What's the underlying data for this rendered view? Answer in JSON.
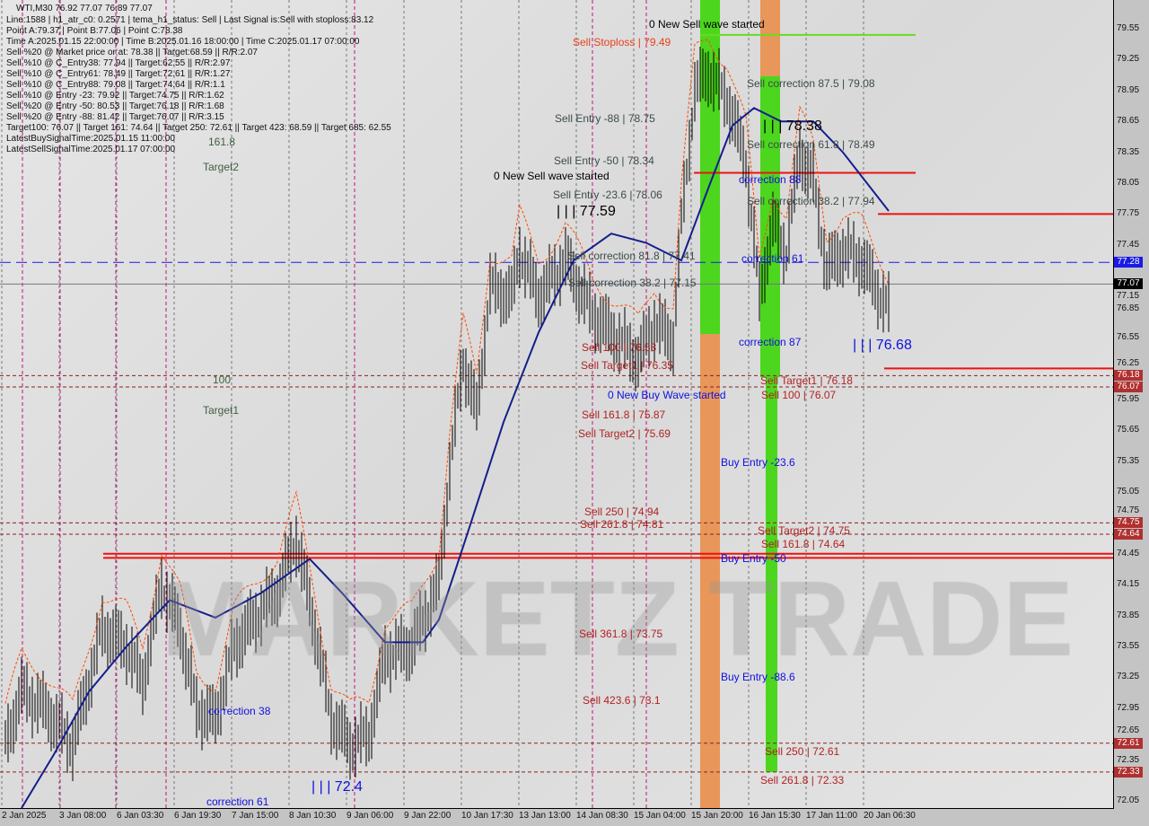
{
  "header": {
    "title": "WTI,M30  76.92 77.07 76.89 77.07",
    "info_lines": [
      "Line:1588 | h1_atr_c0: 0.2571 | tema_h1_status: Sell | Last Signal is:Sell with stoploss:83.12",
      "Point A:79.37 | Point B:77.06 | Point C:78.38",
      "Time A:2025.01.15 22:00:00 | Time B:2025.01.16 18:00:00 | Time C:2025.01.17 07:00:00",
      "Sell %20 @ Market price or at: 78.38 || Target:68.59 || R/R:2.07",
      "Sell %10 @ C_Entry38: 77.94 || Target:62.55 || R/R:2.97",
      "Sell %10 @ C_Entry61: 78.49 || Target:72.61 || R/R:1.27",
      "Sell %10 @ C_Entry88: 79.08 || Target:74.64 || R/R:1.1",
      "Sell %10 @ Entry -23: 79.92 || Target:74.75 || R/R:1.62",
      "Sell %20 @ Entry -50: 80.53 || Target:76.18 || R/R:1.68",
      "Sell %20 @ Entry -88: 81.42 || Target:76.07 || R/R:3.15",
      "Target100: 76.07 || Target 161: 74.64 || Target 250: 72.61 || Target 423: 68.59 || Target 685: 62.55",
      "LatestBuySignalTime:2025.01.15 11:00:00",
      "LatestSellSignalTime:2025.01.17 07:00:00"
    ]
  },
  "watermark": "MARKETZ TRADE",
  "chart_data": {
    "type": "bar",
    "symbol": "WTI",
    "timeframe": "M30",
    "ylim": [
      72.05,
      79.55
    ],
    "y_ticks": [
      "79.55",
      "79.25",
      "78.95",
      "78.65",
      "78.35",
      "78.05",
      "77.75",
      "77.45",
      "77.15",
      "76.85",
      "76.55",
      "76.25",
      "75.95",
      "75.65",
      "75.35",
      "75.05",
      "74.75",
      "74.45",
      "74.15",
      "73.85",
      "73.55",
      "73.25",
      "72.95",
      "72.65",
      "72.35",
      "72.05"
    ],
    "x_ticks": [
      "2 Jan 2025",
      "3 Jan 08:00",
      "6 Jan 03:30",
      "6 Jan 19:30",
      "7 Jan 15:00",
      "8 Jan 10:30",
      "9 Jan 06:00",
      "9 Jan 22:00",
      "10 Jan 17:30",
      "13 Jan 13:00",
      "14 Jan 08:30",
      "15 Jan 04:00",
      "15 Jan 20:00",
      "16 Jan 15:30",
      "17 Jan 11:00",
      "20 Jan 06:30"
    ],
    "price_path_bar_close": [
      [
        2,
        72.59
      ],
      [
        8,
        73.11
      ],
      [
        17,
        72.94
      ],
      [
        27,
        72.59
      ],
      [
        33,
        73.2
      ],
      [
        38,
        73.72
      ],
      [
        47,
        73.55
      ],
      [
        53,
        73.2
      ],
      [
        60,
        74.16
      ],
      [
        67,
        73.72
      ],
      [
        73,
        72.94
      ],
      [
        80,
        72.85
      ],
      [
        87,
        73.55
      ],
      [
        97,
        73.9
      ],
      [
        103,
        74.07
      ],
      [
        110,
        74.6
      ],
      [
        117,
        73.72
      ],
      [
        123,
        72.85
      ],
      [
        130,
        72.59
      ],
      [
        137,
        72.68
      ],
      [
        143,
        73.46
      ],
      [
        153,
        73.55
      ],
      [
        163,
        74.16
      ],
      [
        167,
        75.29
      ],
      [
        172,
        76.34
      ],
      [
        177,
        75.82
      ],
      [
        182,
        77.04
      ],
      [
        190,
        76.95
      ],
      [
        193,
        77.39
      ],
      [
        200,
        76.95
      ],
      [
        210,
        77.3
      ],
      [
        220,
        76.78
      ],
      [
        230,
        76.52
      ],
      [
        237,
        76.34
      ],
      [
        243,
        76.69
      ],
      [
        250,
        76.52
      ],
      [
        253,
        77.65
      ],
      [
        258,
        78.96
      ],
      [
        263,
        79.13
      ],
      [
        270,
        78.87
      ],
      [
        277,
        78.26
      ],
      [
        282,
        76.95
      ],
      [
        287,
        77.65
      ],
      [
        292,
        77.39
      ],
      [
        297,
        78.35
      ],
      [
        302,
        78.08
      ],
      [
        307,
        77.21
      ],
      [
        313,
        77.39
      ],
      [
        320,
        77.3
      ],
      [
        325,
        77.04
      ],
      [
        330,
        76.82
      ]
    ],
    "moving_average": [
      [
        8,
        71.98
      ],
      [
        20,
        72.5
      ],
      [
        33,
        73.11
      ],
      [
        47,
        73.55
      ],
      [
        63,
        74.0
      ],
      [
        80,
        73.83
      ],
      [
        97,
        74.07
      ],
      [
        115,
        74.4
      ],
      [
        127,
        74.07
      ],
      [
        143,
        73.59
      ],
      [
        157,
        73.59
      ],
      [
        163,
        73.81
      ],
      [
        173,
        74.6
      ],
      [
        187,
        75.73
      ],
      [
        200,
        76.6
      ],
      [
        213,
        77.3
      ],
      [
        227,
        77.56
      ],
      [
        240,
        77.47
      ],
      [
        253,
        77.3
      ],
      [
        263,
        78.0
      ],
      [
        272,
        78.61
      ],
      [
        280,
        78.78
      ],
      [
        290,
        78.65
      ],
      [
        302,
        78.65
      ],
      [
        313,
        78.35
      ],
      [
        330,
        77.78
      ]
    ],
    "price_badges": [
      {
        "value": "77.28",
        "color": "#1a1ae6"
      },
      {
        "value": "77.07",
        "color": "#000000"
      },
      {
        "value": "76.18",
        "color": "#b03030"
      },
      {
        "value": "76.07",
        "color": "#b03030"
      },
      {
        "value": "74.75",
        "color": "#b03030"
      },
      {
        "value": "74.64",
        "color": "#b03030"
      },
      {
        "value": "72.61",
        "color": "#b03030"
      },
      {
        "value": "72.33",
        "color": "#b03030"
      }
    ],
    "levels": {
      "stoploss": 79.49,
      "red_lines": [
        78.15,
        77.75,
        76.25,
        74.45,
        74.41
      ],
      "dashed_targets": [
        76.18,
        76.07,
        74.75,
        74.64,
        72.61,
        72.33
      ],
      "bid_line": 77.28,
      "last_price": 77.07
    },
    "annotations": [
      "0 New Sell wave started",
      "Sell Stoploss | 79.49",
      "Sell Entry -88 | 78.75",
      "Sell Entry -50 | 78.34",
      "Sell Entry -23.6 | 78.06",
      "0 New Sell wave started",
      "| | | 77.59",
      "Sell correction 87.5 | 79.08",
      "| | | 78.38",
      "Sell correction 61.8 | 78.49",
      "correction 88",
      "Sell correction 38.2 | 77.94",
      "Sell correction 81.8 | 77.41",
      "Sell correction 38.2 | 77.15",
      "correction 61",
      "correction 87",
      "| | | 76.68",
      "Sell 100 | 76.53",
      "Sell Target1 | 76.35",
      "0 New Buy Wave started",
      "Sell Target1 | 76.18",
      "Sell 100 | 76.07",
      "Sell 161.8 | 75.87",
      "Sell Target2 | 75.69",
      "Buy Entry -23.6",
      "Sell 250 | 74.94",
      "Sell 261.8 | 74.81",
      "Sell Target2 | 74.75",
      "Sell 161.8 | 74.64",
      "Buy Entry -50",
      "Sell 361.8 | 73.75",
      "Buy Entry -88.6",
      "Sell 423.6 | 73.1",
      "Sell 250 | 72.61",
      "Sell 261.8 | 72.33",
      "| | | 72.4",
      "correction 38",
      "correction 61",
      "161.8",
      "Target2",
      "100",
      "Target1"
    ],
    "colors": {
      "ma": "#141e8c",
      "bars": "#000000",
      "envelope": "#ff4a00",
      "buy_zone": "#4cd61e",
      "sell_zone": "#e8965a",
      "stoploss_line": "#66dd22",
      "target_line": "#ee1111"
    }
  }
}
